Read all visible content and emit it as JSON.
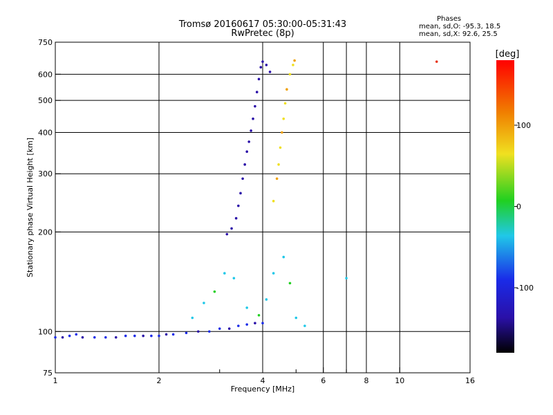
{
  "chart_data": {
    "type": "scatter",
    "title": "Tromsø 20160617 05:30:00-05:31:43",
    "subtitle": "RwPretec (8p)",
    "xlabel": "Frequency [MHz]",
    "ylabel": "Stationary phase Virtual Height [km]",
    "x_scale": "log",
    "y_scale": "log",
    "xlim": [
      1,
      16
    ],
    "ylim": [
      75,
      750
    ],
    "x_ticks": [
      1,
      2,
      4,
      6,
      8,
      10,
      16
    ],
    "x_tick_labels": [
      "1",
      "2",
      "4",
      "6",
      "8",
      "10",
      "16"
    ],
    "x_minor_ticks": [
      3,
      5,
      7
    ],
    "x_gridlines": [
      2,
      4,
      6,
      7,
      8,
      10
    ],
    "y_ticks": [
      75,
      100,
      200,
      300,
      400,
      500,
      600,
      750
    ],
    "y_tick_labels": [
      "75",
      "100",
      "200",
      "300",
      "400",
      "500",
      "600",
      "750"
    ],
    "y_gridlines": [
      100,
      200,
      300,
      400,
      500,
      600
    ],
    "grid": true,
    "stats": {
      "header": "Phases",
      "line_o": "mean, sd,O: -95.3, 18.5",
      "line_x": "mean, sd,X:  92.6, 25.5"
    },
    "colorbar": {
      "label": "[deg]",
      "range": [
        -180,
        180
      ],
      "ticks": [
        100,
        0,
        -100
      ],
      "tick_labels": [
        "100",
        "0",
        "-100"
      ],
      "placement": "right"
    },
    "colors": {
      "o_mode": "#1a2be8",
      "o_mode_dark": "#2a10a8",
      "x_mode": "#f0e020",
      "x_mode_alt": "#f0a000",
      "green": "#20d020",
      "cyan": "#20c8e8",
      "outlier": "#e83010",
      "grid": "#000000"
    },
    "series": [
      {
        "label_text": "",
        "mode": "O-trace E-region (phase ~ -100 deg)",
        "points": [
          [
            1.0,
            96
          ],
          [
            1.05,
            96
          ],
          [
            1.1,
            97
          ],
          [
            1.15,
            98
          ],
          [
            1.2,
            96
          ],
          [
            1.3,
            96
          ],
          [
            1.4,
            96
          ],
          [
            1.5,
            96
          ],
          [
            1.6,
            97
          ],
          [
            1.7,
            97
          ],
          [
            1.8,
            97
          ],
          [
            1.9,
            97
          ],
          [
            2.0,
            97
          ],
          [
            2.1,
            98
          ],
          [
            2.2,
            98
          ],
          [
            2.4,
            99
          ],
          [
            2.6,
            100
          ],
          [
            2.8,
            100
          ],
          [
            3.0,
            102
          ],
          [
            3.2,
            102
          ],
          [
            3.4,
            104
          ],
          [
            3.6,
            105
          ],
          [
            3.8,
            106
          ],
          [
            4.0,
            106
          ]
        ]
      },
      {
        "label_text": "",
        "mode": "O-trace F-region (phase ~ -100 deg)",
        "points": [
          [
            3.15,
            197
          ],
          [
            3.25,
            205
          ],
          [
            3.35,
            220
          ],
          [
            3.4,
            240
          ],
          [
            3.45,
            262
          ],
          [
            3.5,
            290
          ],
          [
            3.55,
            320
          ],
          [
            3.6,
            350
          ],
          [
            3.65,
            375
          ],
          [
            3.7,
            405
          ],
          [
            3.75,
            440
          ],
          [
            3.8,
            480
          ],
          [
            3.85,
            530
          ],
          [
            3.9,
            580
          ],
          [
            3.95,
            630
          ],
          [
            4.0,
            655
          ],
          [
            4.1,
            640
          ],
          [
            4.2,
            610
          ]
        ]
      },
      {
        "label_text": "",
        "mode": "X-trace F-region (phase ~ +100 deg)",
        "points": [
          [
            4.3,
            248
          ],
          [
            4.4,
            290
          ],
          [
            4.45,
            320
          ],
          [
            4.5,
            360
          ],
          [
            4.55,
            400
          ],
          [
            4.6,
            440
          ],
          [
            4.65,
            490
          ],
          [
            4.7,
            540
          ],
          [
            4.8,
            600
          ],
          [
            4.9,
            640
          ],
          [
            4.95,
            660
          ]
        ]
      },
      {
        "label_text": "",
        "mode": "Scattered echoes 100-180 km",
        "points": [
          [
            2.5,
            110
          ],
          [
            2.7,
            122
          ],
          [
            2.9,
            132
          ],
          [
            3.1,
            150
          ],
          [
            3.3,
            145
          ],
          [
            3.6,
            118
          ],
          [
            3.9,
            112
          ],
          [
            4.1,
            125
          ],
          [
            4.3,
            150
          ],
          [
            4.6,
            168
          ],
          [
            4.8,
            140
          ],
          [
            5.0,
            110
          ],
          [
            5.3,
            104
          ],
          [
            7.0,
            145
          ]
        ]
      },
      {
        "label_text": "",
        "mode": "Outlier",
        "points": [
          [
            12.8,
            655
          ]
        ]
      }
    ]
  }
}
